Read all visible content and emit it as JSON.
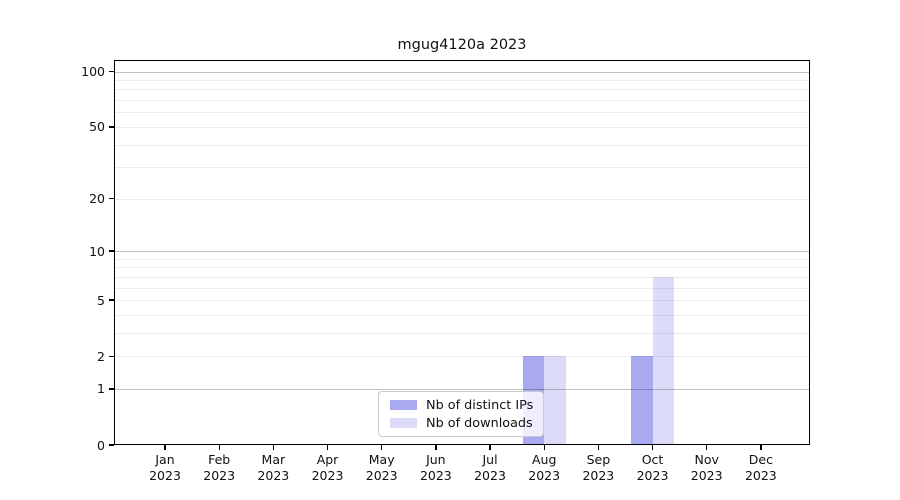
{
  "chart_data": {
    "type": "bar",
    "title": "mgug4120a 2023",
    "categories": [
      "Jan",
      "Feb",
      "Mar",
      "Apr",
      "May",
      "Jun",
      "Jul",
      "Aug",
      "Sep",
      "Oct",
      "Nov",
      "Dec"
    ],
    "x_year_label": "2023",
    "series": [
      {
        "name": "Nb of distinct IPs",
        "color": "#a9a9f2",
        "values": [
          0,
          0,
          0,
          0,
          0,
          0,
          0,
          2,
          0,
          2,
          0,
          0
        ]
      },
      {
        "name": "Nb of downloads",
        "color": "#dcdcf9",
        "values": [
          0,
          0,
          0,
          0,
          0,
          0,
          0,
          2,
          0,
          7,
          0,
          0
        ]
      }
    ],
    "y_axis": {
      "scale": "log1p",
      "tick_values": [
        0,
        1,
        2,
        5,
        10,
        20,
        50,
        100
      ],
      "tick_labels": [
        "0",
        "1",
        "2",
        "5",
        "10",
        "20",
        "50",
        "100"
      ],
      "max_display": 100
    },
    "grid": true,
    "legend_position": "lower-center",
    "background_color": "#ffffff",
    "decade_grid_color": "rgba(0,0,0,0.23)",
    "minor_grid_color": "rgba(0,0,0,0.075)"
  }
}
